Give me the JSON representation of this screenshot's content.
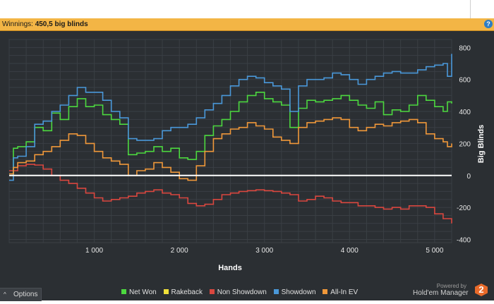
{
  "header": {
    "winnings_label": "Winnings:",
    "winnings_value": "450,5 big blinds",
    "help_glyph": "?"
  },
  "options": {
    "label": "Options",
    "chevron": "^"
  },
  "branding": {
    "powered_by": "Powered by",
    "name": "Hold'em Manager",
    "logo_text": "2"
  },
  "colors": {
    "background": "#2b2f33",
    "net_won": "#4cd83f",
    "rakeback": "#f0e03a",
    "non_showdown": "#d9473f",
    "showdown": "#4a98d9",
    "all_in_ev": "#f0983a",
    "zero_line": "#ffffff",
    "header_bar": "#f3b545"
  },
  "chart_data": {
    "type": "line",
    "title": "",
    "xlabel": "Hands",
    "ylabel": "Big Blinds",
    "xlim": [
      0,
      5200
    ],
    "ylim": [
      -420,
      850
    ],
    "xticks": [
      1000,
      2000,
      3000,
      4000,
      5000
    ],
    "xtick_labels": [
      "1 000",
      "2 000",
      "3 000",
      "4 000",
      "5 000"
    ],
    "yticks": [
      -400,
      -200,
      0,
      200,
      400,
      600,
      800
    ],
    "ytick_labels": [
      "-400",
      "-200",
      "0",
      "200",
      "400",
      "600",
      "800"
    ],
    "grid": true,
    "legend_position": "bottom",
    "series": [
      {
        "name": "Net Won",
        "color": "#4cd83f",
        "x": [
          0,
          50,
          100,
          200,
          300,
          400,
          500,
          600,
          700,
          800,
          900,
          1000,
          1100,
          1200,
          1300,
          1400,
          1500,
          1600,
          1700,
          1800,
          1900,
          2000,
          2100,
          2200,
          2300,
          2400,
          2500,
          2600,
          2700,
          2800,
          2900,
          3000,
          3100,
          3200,
          3300,
          3400,
          3500,
          3600,
          3700,
          3800,
          3900,
          4000,
          4100,
          4200,
          4300,
          4400,
          4500,
          4600,
          4700,
          4800,
          4900,
          5000,
          5100,
          5150,
          5200
        ],
        "y": [
          0,
          170,
          180,
          210,
          300,
          280,
          390,
          350,
          430,
          480,
          430,
          440,
          380,
          350,
          320,
          130,
          140,
          150,
          180,
          150,
          170,
          110,
          100,
          150,
          250,
          310,
          350,
          400,
          460,
          500,
          520,
          480,
          460,
          440,
          300,
          420,
          470,
          460,
          470,
          480,
          500,
          470,
          440,
          420,
          460,
          380,
          410,
          400,
          440,
          500,
          470,
          430,
          400,
          460,
          450
        ]
      },
      {
        "name": "Rakeback",
        "color": "#f0e03a",
        "x": [
          0,
          5200
        ],
        "y": [
          0,
          0
        ]
      },
      {
        "name": "Non Showdown",
        "color": "#d9473f",
        "x": [
          0,
          100,
          200,
          300,
          400,
          500,
          600,
          700,
          800,
          900,
          1000,
          1100,
          1200,
          1300,
          1400,
          1500,
          1600,
          1700,
          1800,
          1900,
          2000,
          2100,
          2200,
          2300,
          2400,
          2500,
          2600,
          2700,
          2800,
          2900,
          3000,
          3100,
          3200,
          3300,
          3400,
          3500,
          3600,
          3700,
          3800,
          3900,
          4000,
          4100,
          4200,
          4300,
          4400,
          4500,
          4600,
          4700,
          4800,
          4900,
          5000,
          5100,
          5200
        ],
        "y": [
          30,
          60,
          70,
          65,
          40,
          0,
          -30,
          -50,
          -80,
          -110,
          -140,
          -160,
          -150,
          -140,
          -130,
          -110,
          -100,
          -90,
          -110,
          -120,
          -140,
          -175,
          -190,
          -180,
          -150,
          -120,
          -110,
          -100,
          -95,
          -90,
          -95,
          -100,
          -110,
          -120,
          -160,
          -150,
          -130,
          -140,
          -160,
          -170,
          -170,
          -190,
          -190,
          -200,
          -210,
          -200,
          -210,
          -190,
          -190,
          -200,
          -240,
          -270,
          -300
        ]
      },
      {
        "name": "Showdown",
        "color": "#4a98d9",
        "x": [
          0,
          50,
          100,
          200,
          300,
          400,
          500,
          600,
          700,
          800,
          900,
          1000,
          1100,
          1200,
          1300,
          1400,
          1500,
          1600,
          1700,
          1800,
          1900,
          2000,
          2100,
          2200,
          2300,
          2400,
          2500,
          2600,
          2700,
          2800,
          2900,
          3000,
          3100,
          3200,
          3300,
          3400,
          3500,
          3600,
          3700,
          3800,
          3900,
          4000,
          4100,
          4200,
          4300,
          4400,
          4500,
          4600,
          4700,
          4800,
          4900,
          5000,
          5100,
          5150,
          5200
        ],
        "y": [
          -30,
          110,
          120,
          180,
          320,
          340,
          400,
          440,
          500,
          550,
          520,
          520,
          470,
          400,
          360,
          230,
          220,
          220,
          230,
          280,
          300,
          300,
          320,
          360,
          410,
          450,
          500,
          560,
          600,
          620,
          610,
          580,
          560,
          540,
          400,
          560,
          600,
          600,
          610,
          640,
          630,
          600,
          570,
          600,
          620,
          640,
          650,
          640,
          640,
          660,
          680,
          690,
          700,
          620,
          760
        ]
      },
      {
        "name": "All-In EV",
        "color": "#f0983a",
        "x": [
          0,
          50,
          100,
          200,
          300,
          400,
          500,
          600,
          700,
          800,
          900,
          1000,
          1100,
          1200,
          1300,
          1400,
          1500,
          1600,
          1700,
          1800,
          1900,
          2000,
          2100,
          2200,
          2300,
          2400,
          2500,
          2600,
          2700,
          2800,
          2900,
          3000,
          3100,
          3200,
          3300,
          3400,
          3500,
          3600,
          3700,
          3800,
          3900,
          4000,
          4100,
          4200,
          4300,
          4400,
          4500,
          4600,
          4700,
          4800,
          4900,
          5000,
          5100,
          5150,
          5200
        ],
        "y": [
          10,
          50,
          80,
          90,
          130,
          150,
          180,
          220,
          260,
          250,
          200,
          150,
          110,
          90,
          70,
          0,
          30,
          40,
          80,
          50,
          20,
          -20,
          -30,
          60,
          150,
          230,
          260,
          290,
          300,
          330,
          310,
          290,
          240,
          220,
          200,
          300,
          330,
          340,
          350,
          360,
          350,
          300,
          280,
          300,
          320,
          310,
          330,
          340,
          350,
          330,
          260,
          230,
          210,
          180,
          200
        ]
      }
    ]
  }
}
